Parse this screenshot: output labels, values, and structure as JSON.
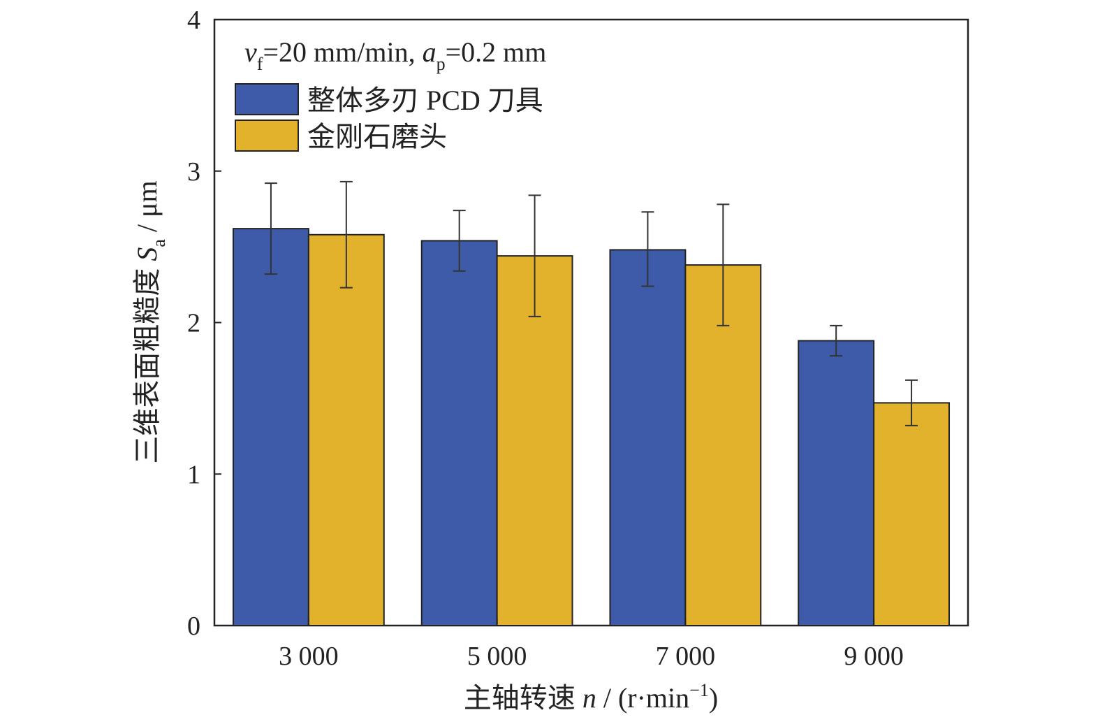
{
  "chart_data": {
    "type": "bar",
    "title": "",
    "annotation": {
      "v_sym": "v",
      "v_sub": "f",
      "v_val": "=20 mm/min, ",
      "a_sym": "a",
      "a_sub": "p",
      "a_val": "=0.2 mm"
    },
    "xlabel": {
      "prefix": "主轴转速 ",
      "var": "n",
      "mid": " / (r·min",
      "sup": "−1",
      "suffix": ")"
    },
    "ylabel": {
      "prefix": "三维表面粗糙度 ",
      "var": "S",
      "sub": "a",
      "suffix": " / μm"
    },
    "categories": [
      "3 000",
      "5 000",
      "7 000",
      "9 000"
    ],
    "ylim": [
      0,
      4
    ],
    "yticks": [
      "0",
      "1",
      "2",
      "3",
      "4"
    ],
    "grid": false,
    "legend_position": "top-left",
    "series": [
      {
        "name": "整体多刃 PCD 刀具",
        "color": "#3d5ba9",
        "values": [
          2.62,
          2.54,
          2.48,
          1.88
        ],
        "error_low": [
          2.32,
          2.34,
          2.24,
          1.78
        ],
        "error_high": [
          2.92,
          2.74,
          2.73,
          1.98
        ]
      },
      {
        "name": "金刚石磨头",
        "color": "#e3b22c",
        "values": [
          2.58,
          2.44,
          2.38,
          1.47
        ],
        "error_low": [
          2.23,
          2.04,
          1.98,
          1.32
        ],
        "error_high": [
          2.93,
          2.84,
          2.78,
          1.62
        ]
      }
    ]
  }
}
